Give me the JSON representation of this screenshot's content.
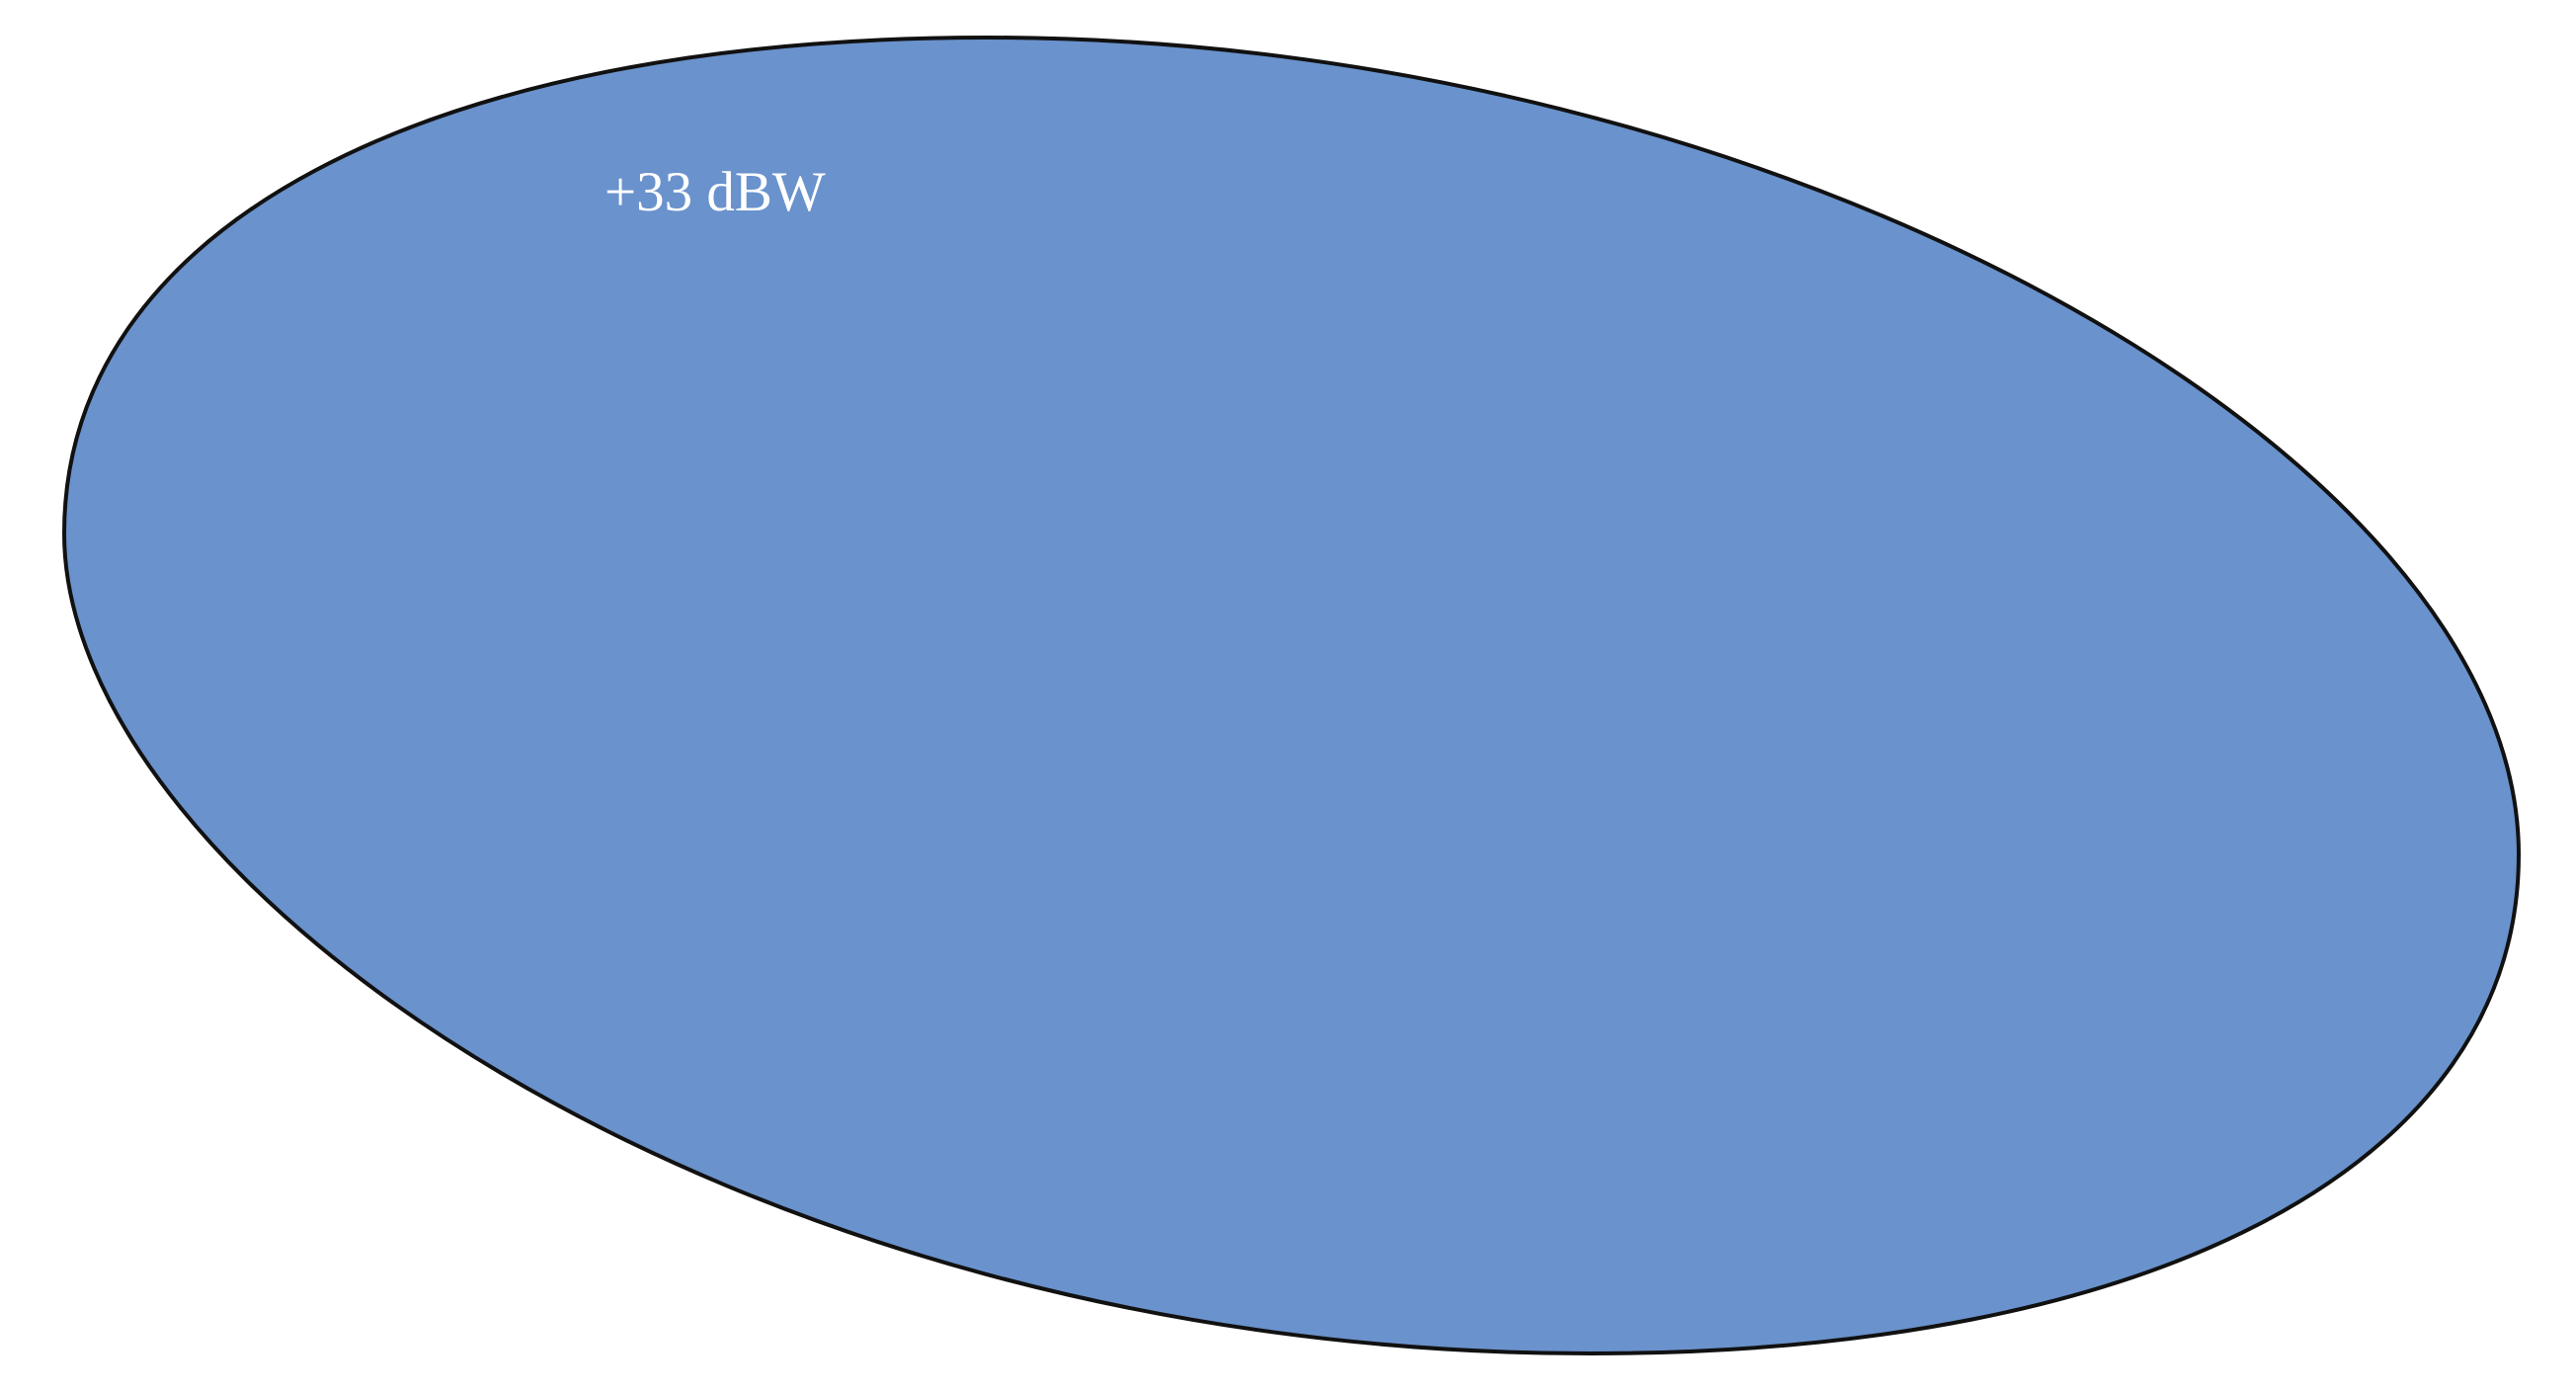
{
  "contour": {
    "label": "+33 dBW",
    "fill_color": "#6a92cc",
    "stroke_color": "#111111",
    "label_color": "#ffffff"
  }
}
